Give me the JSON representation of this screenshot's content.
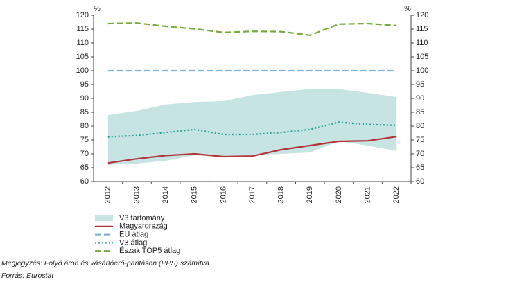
{
  "chart_data": {
    "type": "line",
    "y_unit": "%",
    "y2_unit": "%",
    "categories": [
      "2012",
      "2013",
      "2014",
      "2015",
      "2016",
      "2017",
      "2018",
      "2019",
      "2020",
      "2021",
      "2022"
    ],
    "ylim": [
      60,
      120
    ],
    "yticks": [
      60,
      65,
      70,
      75,
      80,
      85,
      90,
      95,
      100,
      105,
      110,
      115,
      120
    ],
    "y2lim": [
      60,
      120
    ],
    "y2ticks": [
      60,
      65,
      70,
      75,
      80,
      85,
      90,
      95,
      100,
      105,
      110,
      115,
      120
    ],
    "series": [
      {
        "name": "V3 tartomány",
        "type": "band",
        "color": "#c6e4e1",
        "low": [
          66,
          66.5,
          67.5,
          69.5,
          69,
          69.5,
          70,
          70.5,
          74.5,
          73,
          71
        ],
        "high": [
          84,
          85.5,
          87.8,
          88.7,
          89,
          91.2,
          92.3,
          93.4,
          93.4,
          92,
          90.5
        ]
      },
      {
        "name": "Magyarország",
        "type": "line",
        "color": "#b5333a",
        "dash": "solid",
        "values": [
          66.7,
          68.2,
          69.4,
          70,
          69,
          69.2,
          71.5,
          73,
          74.5,
          74.7,
          76.2
        ]
      },
      {
        "name": "EU átlag",
        "type": "line",
        "color": "#80b3d9",
        "dash": "dashed",
        "values": [
          100,
          100,
          100,
          100,
          100,
          100,
          100,
          100,
          100,
          100,
          100
        ]
      },
      {
        "name": "V3 átlag",
        "type": "line",
        "color": "#1ea395",
        "dash": "dotted",
        "values": [
          76.1,
          76.6,
          77.7,
          78.8,
          77,
          77,
          77.7,
          78.8,
          81.4,
          80.6,
          80.3
        ]
      },
      {
        "name": "Észak TOP5 átlag",
        "type": "line",
        "color": "#78ab3b",
        "dash": "dashed",
        "values": [
          117,
          117.2,
          116,
          115.1,
          113.8,
          114.2,
          114.1,
          112.8,
          116.8,
          117,
          116.3
        ]
      }
    ],
    "notes": [
      "Megjegyzés: Folyó áron és vásárlóerő-paritáson (PPS) számítva.",
      "Forrás: Eurostat"
    ]
  }
}
